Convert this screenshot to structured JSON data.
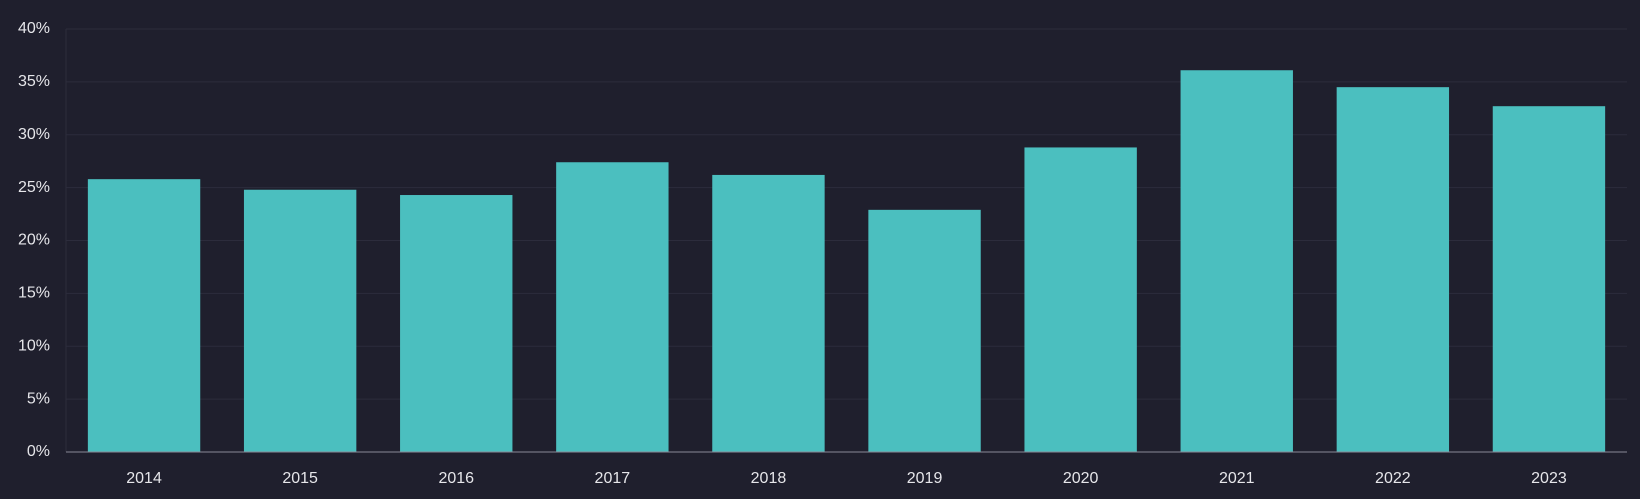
{
  "chart_data": {
    "type": "bar",
    "categories": [
      "2014",
      "2015",
      "2016",
      "2017",
      "2018",
      "2019",
      "2020",
      "2021",
      "2022",
      "2023"
    ],
    "values": [
      25.8,
      24.8,
      24.3,
      27.4,
      26.2,
      22.9,
      28.8,
      36.1,
      34.5,
      32.7
    ],
    "color": "#4bbfbf",
    "ylim": [
      0,
      40
    ],
    "yticks": [
      {
        "value": 0,
        "label": "0%"
      },
      {
        "value": 5,
        "label": "5%"
      },
      {
        "value": 10,
        "label": "10%"
      },
      {
        "value": 15,
        "label": "15%"
      },
      {
        "value": 20,
        "label": "20%"
      },
      {
        "value": 25,
        "label": "25%"
      },
      {
        "value": 30,
        "label": "30%"
      },
      {
        "value": 35,
        "label": "35%"
      },
      {
        "value": 40,
        "label": "40%"
      }
    ],
    "grid": true
  }
}
